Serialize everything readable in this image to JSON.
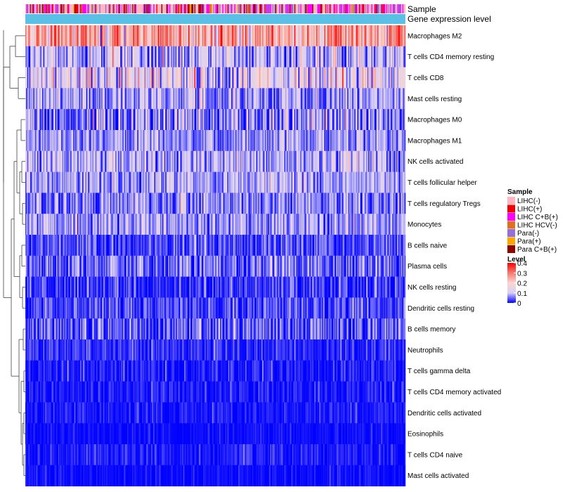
{
  "chart_data": {
    "type": "heatmap",
    "title": "",
    "num_samples": 380,
    "annotation_tracks": [
      {
        "label": "Sample"
      },
      {
        "label": "Gene expression level",
        "color": "#5bc0e6"
      }
    ],
    "sample_groups": [
      {
        "name": "LIHC(-)",
        "color": "#ffb6c1"
      },
      {
        "name": "LIHC(+)",
        "color": "#ee0000"
      },
      {
        "name": "LIHC C+B(+)",
        "color": "#ff00ff"
      },
      {
        "name": "LIHC HCV(-)",
        "color": "#e07020"
      },
      {
        "name": "Para(-)",
        "color": "#9370db"
      },
      {
        "name": "Para(+)",
        "color": "#ffa500"
      },
      {
        "name": "Para C+B(+)",
        "color": "#8b0000"
      }
    ],
    "sample_group_weights": [
      0.38,
      0.12,
      0.25,
      0.03,
      0.12,
      0.02,
      0.08
    ],
    "rows": [
      {
        "label": "Macrophages M2",
        "mean": 0.25,
        "sd": 0.07
      },
      {
        "label": "T cells CD4 memory resting",
        "mean": 0.09,
        "sd": 0.06
      },
      {
        "label": "T cells CD8",
        "mean": 0.14,
        "sd": 0.07
      },
      {
        "label": "Mast cells resting",
        "mean": 0.07,
        "sd": 0.05
      },
      {
        "label": "Macrophages M0",
        "mean": 0.06,
        "sd": 0.07
      },
      {
        "label": "Macrophages M1",
        "mean": 0.07,
        "sd": 0.04
      },
      {
        "label": "NK cells activated",
        "mean": 0.09,
        "sd": 0.05
      },
      {
        "label": "T cells follicular helper",
        "mean": 0.08,
        "sd": 0.04
      },
      {
        "label": "T cells regulatory  Tregs",
        "mean": 0.06,
        "sd": 0.04
      },
      {
        "label": "Monocytes",
        "mean": 0.08,
        "sd": 0.04
      },
      {
        "label": "B cells naive",
        "mean": 0.03,
        "sd": 0.03
      },
      {
        "label": "Plasma cells",
        "mean": 0.05,
        "sd": 0.04
      },
      {
        "label": "NK cells resting",
        "mean": 0.02,
        "sd": 0.03
      },
      {
        "label": "Dendritic cells resting",
        "mean": 0.03,
        "sd": 0.03
      },
      {
        "label": "B cells memory",
        "mean": 0.04,
        "sd": 0.04
      },
      {
        "label": "Neutrophils",
        "mean": 0.02,
        "sd": 0.02
      },
      {
        "label": "T cells gamma delta",
        "mean": 0.01,
        "sd": 0.02
      },
      {
        "label": "T cells CD4 memory activated",
        "mean": 0.01,
        "sd": 0.02
      },
      {
        "label": "Dendritic cells activated",
        "mean": 0.01,
        "sd": 0.015
      },
      {
        "label": "Eosinophils",
        "mean": 0.005,
        "sd": 0.01
      },
      {
        "label": "T cells CD4 naive",
        "mean": 0.01,
        "sd": 0.015
      },
      {
        "label": "Mast cells activated",
        "mean": 0.005,
        "sd": 0.01
      }
    ],
    "color_scale": {
      "title": "Level",
      "min": 0,
      "max": 0.4,
      "stops": [
        {
          "value": 0,
          "color": "#0000ff"
        },
        {
          "value": 0.1,
          "color": "#d8d0f8"
        },
        {
          "value": 0.2,
          "color": "#fad6cf"
        },
        {
          "value": 0.3,
          "color": "#f47a72"
        },
        {
          "value": 0.4,
          "color": "#ff0000"
        }
      ],
      "ticks": [
        "0.4",
        "0.3",
        "0.2",
        "0.1",
        "0"
      ]
    },
    "legend_sample_title": "Sample",
    "row_dendrogram": true,
    "legend_position": "right"
  }
}
